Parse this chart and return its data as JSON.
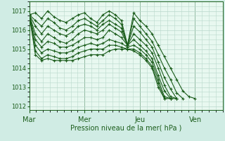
{
  "xlabel": "Pression niveau de la mer( hPa )",
  "day_labels": [
    "Mar",
    "Mer",
    "Jeu",
    "Ven"
  ],
  "day_positions": [
    0,
    8,
    16,
    24
  ],
  "xlim": [
    0,
    28
  ],
  "ylim": [
    1011.8,
    1017.5
  ],
  "yticks": [
    1012,
    1013,
    1014,
    1015,
    1016,
    1017
  ],
  "bg_color": "#d0ece4",
  "plot_bg_color": "#e8f8f0",
  "grid_color": "#b8d8cc",
  "line_color": "#1a5c1a",
  "lines": [
    [
      1016.8,
      1016.9,
      1016.6,
      1017.0,
      1016.7,
      1016.5,
      1016.4,
      1016.6,
      1016.8,
      1016.9,
      1016.6,
      1016.4,
      1016.8,
      1017.0,
      1016.8,
      1016.5,
      1015.2,
      1016.9,
      1016.5,
      1016.2,
      1015.8,
      1015.2,
      1014.6,
      1014.0,
      1013.4,
      1012.8,
      1012.5,
      1012.4
    ],
    [
      1016.8,
      1016.5,
      1016.2,
      1016.6,
      1016.4,
      1016.1,
      1016.0,
      1016.2,
      1016.5,
      1016.6,
      1016.4,
      1016.2,
      1016.5,
      1016.8,
      1016.6,
      1016.3,
      1015.2,
      1016.6,
      1016.2,
      1015.8,
      1015.4,
      1014.7,
      1014.0,
      1013.4,
      1012.7,
      1012.4
    ],
    [
      1016.8,
      1016.2,
      1015.8,
      1016.2,
      1016.0,
      1015.8,
      1015.7,
      1015.9,
      1016.2,
      1016.3,
      1016.2,
      1016.0,
      1016.3,
      1016.5,
      1016.3,
      1016.1,
      1015.2,
      1016.2,
      1015.9,
      1015.5,
      1015.1,
      1014.3,
      1013.5,
      1012.9,
      1012.4
    ],
    [
      1016.8,
      1015.8,
      1015.4,
      1015.8,
      1015.6,
      1015.4,
      1015.3,
      1015.5,
      1015.8,
      1016.0,
      1015.9,
      1015.8,
      1016.0,
      1016.3,
      1016.1,
      1015.9,
      1015.2,
      1015.8,
      1015.5,
      1015.2,
      1014.8,
      1014.0,
      1013.1,
      1012.5,
      1012.4
    ],
    [
      1016.8,
      1015.5,
      1015.1,
      1015.4,
      1015.3,
      1015.1,
      1015.1,
      1015.2,
      1015.4,
      1015.6,
      1015.6,
      1015.5,
      1015.6,
      1016.0,
      1015.8,
      1015.6,
      1015.2,
      1015.5,
      1015.2,
      1014.9,
      1014.5,
      1013.6,
      1012.8,
      1012.4,
      1012.4
    ],
    [
      1016.8,
      1015.2,
      1014.8,
      1015.0,
      1014.9,
      1014.8,
      1014.8,
      1014.9,
      1015.1,
      1015.2,
      1015.3,
      1015.2,
      1015.3,
      1015.5,
      1015.4,
      1015.3,
      1015.1,
      1015.2,
      1015.0,
      1014.7,
      1014.3,
      1013.4,
      1012.5,
      1012.4
    ],
    [
      1016.8,
      1014.9,
      1014.5,
      1014.7,
      1014.6,
      1014.5,
      1014.5,
      1014.6,
      1014.8,
      1014.9,
      1015.0,
      1015.0,
      1015.0,
      1015.2,
      1015.2,
      1015.1,
      1015.0,
      1015.0,
      1014.8,
      1014.5,
      1014.1,
      1013.2,
      1012.4,
      1012.4
    ],
    [
      1016.8,
      1014.7,
      1014.4,
      1014.5,
      1014.4,
      1014.4,
      1014.4,
      1014.4,
      1014.5,
      1014.6,
      1014.7,
      1014.7,
      1014.7,
      1014.9,
      1015.0,
      1015.0,
      1015.0,
      1014.9,
      1014.7,
      1014.4,
      1014.0,
      1013.0,
      1012.4
    ]
  ]
}
